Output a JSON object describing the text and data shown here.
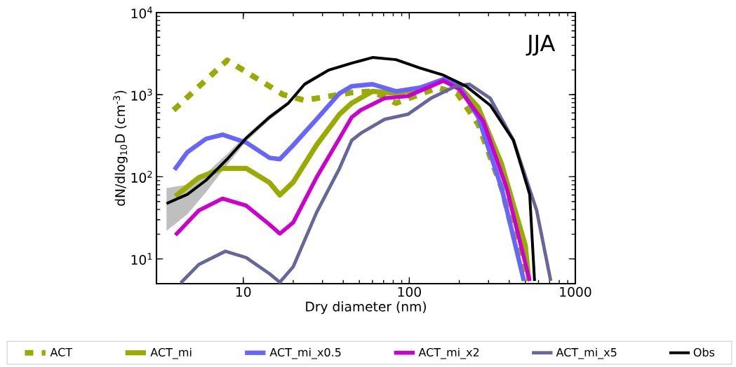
{
  "chart_data": {
    "type": "line",
    "xlabel": "Dry diameter (nm)",
    "ylabel": "dN/dlog$_{10}$D (cm$^{-3}$)",
    "annotations": [
      "JJA"
    ],
    "log": "xy",
    "legend": "bottom",
    "xlim": [
      3,
      1000
    ],
    "ylim": [
      5,
      10000
    ],
    "xticks": [
      10,
      100,
      1000
    ],
    "yticks": [
      {
        "value": 10,
        "label": "10$^{1}$"
      },
      {
        "value": 100,
        "label": "10$^{2}$"
      },
      {
        "value": 1000,
        "label": "10$^{3}$"
      },
      {
        "value": 10000,
        "label": "10$^{4}$"
      }
    ],
    "series": [
      {
        "name": "ACT",
        "color": "#99aa00",
        "line_style": "dashed",
        "x": [
          3.8,
          8.0,
          17.4,
          23.4,
          45,
          60,
          83,
          149,
          194,
          260,
          359,
          500
        ],
        "values": [
          649,
          2624,
          1000,
          855,
          1062,
          1100,
          790,
          1218,
          1040,
          437,
          74,
          5.4
        ]
      },
      {
        "name": "ACT_mi",
        "color": "#99aa00",
        "line_style": "solid",
        "x": [
          3.9,
          5.4,
          7.5,
          10.4,
          14.4,
          16.6,
          20,
          27.6,
          38,
          45,
          60,
          83,
          116,
          160,
          194,
          260,
          359,
          500,
          525
        ],
        "values": [
          58,
          98,
          127,
          127,
          85,
          60,
          86,
          243,
          577,
          790,
          1100,
          1040,
          1170,
          1483,
          1343,
          702,
          145,
          14.5,
          5.4
        ]
      },
      {
        "name": "ACT_mi_x0.5",
        "color": "#6666ff",
        "line_style": "solid",
        "x": [
          3.85,
          4.6,
          5.96,
          7.5,
          10.4,
          14.4,
          16.6,
          20,
          27.6,
          38,
          45,
          60,
          83,
          116,
          160,
          194,
          260,
          359,
          490
        ],
        "values": [
          122,
          199,
          290,
          326,
          262,
          170,
          164,
          243,
          502,
          1040,
          1268,
          1343,
          1100,
          1218,
          1542,
          1396,
          532,
          74,
          5.4
        ]
      },
      {
        "name": "ACT_mi_x2",
        "color": "#cc00cc",
        "line_style": "solid",
        "x": [
          3.9,
          5.4,
          7.5,
          10.4,
          14.4,
          16.6,
          20,
          27.6,
          38,
          45,
          51,
          71,
          98,
          135,
          160,
          200,
          279,
          385,
          531
        ],
        "values": [
          19.5,
          38.9,
          54.3,
          44.7,
          26.2,
          20.3,
          27.8,
          98,
          295,
          532,
          649,
          906,
          962,
          1268,
          1483,
          1170,
          473,
          74,
          5.4
        ]
      },
      {
        "name": "ACT_mi_x5",
        "color": "#666699",
        "line_style": "solid",
        "x": [
          4.2,
          5.4,
          7.8,
          10.4,
          14.4,
          16.6,
          20,
          27.6,
          38,
          45,
          51,
          71,
          98,
          135,
          190,
          230,
          307,
          424,
          585,
          711
        ],
        "values": [
          5.1,
          8.55,
          12.4,
          10.4,
          6.6,
          5.2,
          8.05,
          36.6,
          127,
          278,
          339,
          502,
          577,
          906,
          1268,
          1343,
          906,
          278,
          38.9,
          5.4
        ]
      },
      {
        "name": "Obs",
        "color": "#000000",
        "line_style": "solid",
        "x": [
          3.45,
          4.6,
          5.96,
          8.0,
          10.4,
          14.4,
          18.7,
          23.4,
          32.6,
          45,
          60,
          83,
          116,
          160,
          220,
          307,
          424,
          531,
          568
        ],
        "values": [
          47.3,
          61,
          90.6,
          164,
          295,
          532,
          790,
          1343,
          1990,
          2424,
          2838,
          2675,
          2113,
          1734,
          1268,
          745,
          278,
          61,
          5.4
        ],
        "lower": [
          22,
          35,
          65,
          140,
          270,
          490,
          740,
          1260,
          1900,
          2330,
          2730,
          2570,
          2030,
          1660,
          1210,
          710,
          260,
          55,
          5.2
        ],
        "upper": [
          73,
          80,
          110,
          190,
          320,
          575,
          840,
          1430,
          2080,
          2520,
          2950,
          2780,
          2200,
          1810,
          1330,
          780,
          300,
          68,
          5.6
        ]
      }
    ]
  }
}
